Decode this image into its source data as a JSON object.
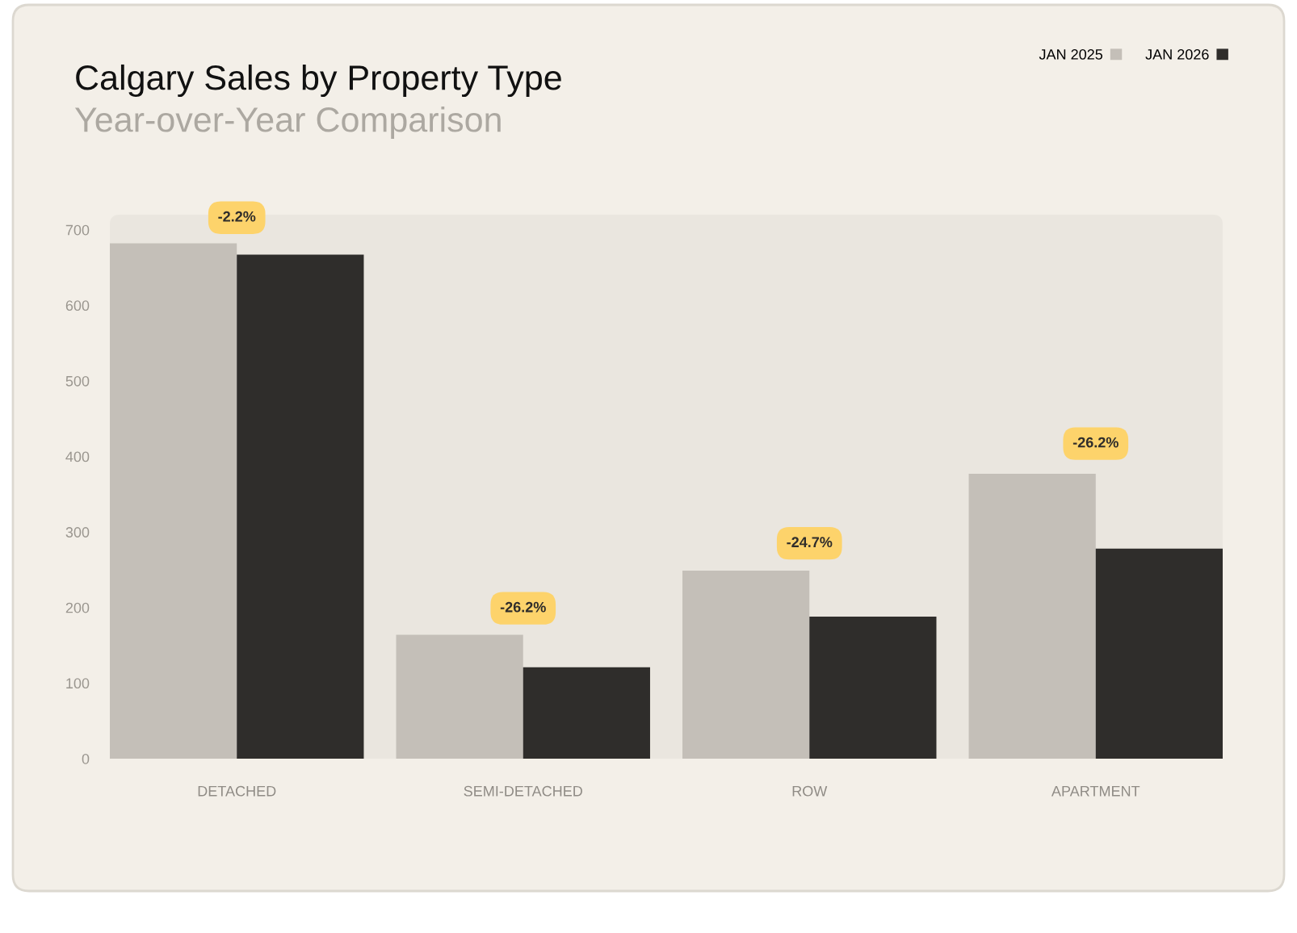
{
  "chart_data": {
    "type": "bar",
    "title": "Calgary Sales by Property Type",
    "subtitle": "Year-over-Year Comparison",
    "categories": [
      "DETACHED",
      "SEMI-DETACHED",
      "ROW",
      "APARTMENT"
    ],
    "series": [
      {
        "name": "JAN 2025",
        "color": "#c4bfb8",
        "values": [
          682,
          164,
          249,
          377
        ]
      },
      {
        "name": "JAN 2026",
        "color": "#2f2d2b",
        "values": [
          667,
          121,
          188,
          278
        ]
      }
    ],
    "ylim": [
      0,
      720
    ],
    "yticks": [
      0,
      100,
      200,
      300,
      400,
      500,
      600,
      700
    ],
    "annotations": [
      {
        "text": "-2.2%",
        "x": "DETACHED",
        "y": 716
      },
      {
        "text": "-26.2%",
        "x": "SEMI-DETACHED",
        "y": 199
      },
      {
        "text": "-24.7%",
        "x": "ROW",
        "y": 285
      },
      {
        "text": "-26.2%",
        "x": "APARTMENT",
        "y": 417
      }
    ],
    "legend": "top right",
    "grid": false
  }
}
